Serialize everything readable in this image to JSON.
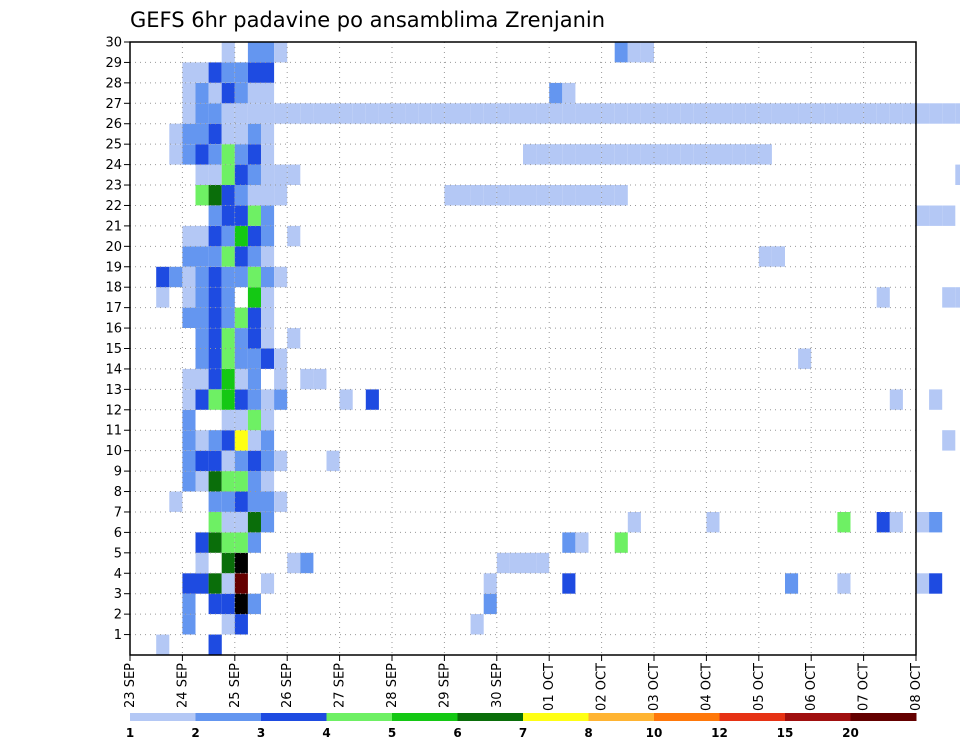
{
  "chart_data": {
    "type": "heatmap",
    "title": "GEFS 6hr padavine po ansamblima Zrenjanin",
    "y_members": [
      1,
      2,
      3,
      4,
      5,
      6,
      7,
      8,
      9,
      10,
      11,
      12,
      13,
      14,
      15,
      16,
      17,
      18,
      19,
      20,
      21,
      22,
      23,
      24,
      25,
      26,
      27,
      28,
      29,
      30
    ],
    "ylim": [
      0,
      30
    ],
    "x_labels": [
      "23 SEP",
      "24 SEP",
      "25 SEP",
      "26 SEP",
      "27 SEP",
      "28 SEP",
      "29 SEP",
      "30 SEP",
      "01 OCT",
      "02 OCT",
      "03 OCT",
      "04 OCT",
      "05 OCT",
      "06 OCT",
      "07 OCT",
      "08 OCT"
    ],
    "time_step_hours": 6,
    "grid": true,
    "legend": {
      "position": "bottom",
      "labels": [
        "1",
        "2",
        "3",
        "4",
        "5",
        "6",
        "7",
        "8",
        "10",
        "12",
        "15",
        "20"
      ],
      "colors": [
        "#b4c8f5",
        "#6496f0",
        "#1e4be1",
        "#6ef064",
        "#14c814",
        "#0a6e0a",
        "#ffff14",
        "#ffb432",
        "#ff780a",
        "#e63214",
        "#a00f0f",
        "#640000"
      ]
    },
    "cells": [
      [
        0.5,
        1,
        1
      ],
      [
        1.5,
        1,
        2
      ],
      [
        1.5,
        1,
        3
      ],
      [
        1,
        2,
        2
      ],
      [
        1.75,
        2,
        1
      ],
      [
        2,
        2,
        1
      ],
      [
        2,
        2,
        3
      ],
      [
        6.5,
        2,
        1
      ],
      [
        1,
        3,
        2
      ],
      [
        1.5,
        3,
        3
      ],
      [
        1.75,
        3,
        3
      ],
      [
        2,
        3,
        14
      ],
      [
        2.25,
        3,
        2
      ],
      [
        6.75,
        3,
        2
      ],
      [
        1,
        4,
        3
      ],
      [
        1.25,
        4,
        3
      ],
      [
        1.5,
        4,
        6
      ],
      [
        1.75,
        4,
        1
      ],
      [
        2,
        4,
        12
      ],
      [
        2.5,
        4,
        1
      ],
      [
        6.75,
        4,
        1
      ],
      [
        8.25,
        4,
        3
      ],
      [
        12.5,
        4,
        2
      ],
      [
        13.5,
        4,
        1
      ],
      [
        15,
        4,
        1
      ],
      [
        15.25,
        4,
        3
      ],
      [
        1.25,
        5,
        1
      ],
      [
        1.75,
        5,
        6
      ],
      [
        2,
        5,
        13
      ],
      [
        3,
        5,
        1
      ],
      [
        3.25,
        5,
        2
      ],
      [
        7,
        5,
        1
      ],
      [
        7.25,
        5,
        1
      ],
      [
        7.5,
        5,
        1
      ],
      [
        7.75,
        5,
        1
      ],
      [
        1.25,
        6,
        3
      ],
      [
        1.5,
        6,
        6
      ],
      [
        1.75,
        6,
        4
      ],
      [
        2,
        6,
        4
      ],
      [
        2.25,
        6,
        2
      ],
      [
        8.25,
        6,
        2
      ],
      [
        8.5,
        6,
        1
      ],
      [
        9.25,
        6,
        4
      ],
      [
        1.5,
        7,
        4
      ],
      [
        1.75,
        7,
        1
      ],
      [
        2,
        7,
        1
      ],
      [
        2.25,
        7,
        6
      ],
      [
        2.5,
        7,
        2
      ],
      [
        9.5,
        7,
        1
      ],
      [
        11,
        7,
        1
      ],
      [
        13.5,
        7,
        4
      ],
      [
        14.25,
        7,
        3
      ],
      [
        14.5,
        7,
        1
      ],
      [
        15,
        7,
        1
      ],
      [
        15.25,
        7,
        2
      ],
      [
        0.75,
        8,
        1
      ],
      [
        1.5,
        8,
        2
      ],
      [
        1.75,
        8,
        2
      ],
      [
        2,
        8,
        3
      ],
      [
        2.25,
        8,
        2
      ],
      [
        2.5,
        8,
        2
      ],
      [
        2.75,
        8,
        1
      ],
      [
        1,
        9,
        2
      ],
      [
        1.25,
        9,
        1
      ],
      [
        1.5,
        9,
        6
      ],
      [
        1.75,
        9,
        4
      ],
      [
        2,
        9,
        4
      ],
      [
        2.25,
        9,
        2
      ],
      [
        2.5,
        9,
        1
      ],
      [
        1,
        10,
        2
      ],
      [
        1.25,
        10,
        3
      ],
      [
        1.5,
        10,
        3
      ],
      [
        1.75,
        10,
        1
      ],
      [
        2,
        10,
        2
      ],
      [
        2.25,
        10,
        3
      ],
      [
        2.5,
        10,
        2
      ],
      [
        2.75,
        10,
        1
      ],
      [
        3.75,
        10,
        1
      ],
      [
        1,
        11,
        2
      ],
      [
        1.25,
        11,
        1
      ],
      [
        1.5,
        11,
        2
      ],
      [
        1.75,
        11,
        3
      ],
      [
        2,
        11,
        7
      ],
      [
        2.25,
        11,
        1
      ],
      [
        2.5,
        11,
        2
      ],
      [
        15.5,
        11,
        1
      ],
      [
        1,
        12,
        2
      ],
      [
        1.75,
        12,
        1
      ],
      [
        2,
        12,
        1
      ],
      [
        2.25,
        12,
        4
      ],
      [
        2.5,
        12,
        1
      ],
      [
        1,
        13,
        1
      ],
      [
        1.25,
        13,
        3
      ],
      [
        1.5,
        13,
        4
      ],
      [
        1.75,
        13,
        5
      ],
      [
        2,
        13,
        3
      ],
      [
        2.25,
        13,
        2
      ],
      [
        2.5,
        13,
        1
      ],
      [
        2.75,
        13,
        2
      ],
      [
        4,
        13,
        1
      ],
      [
        4.5,
        13,
        3
      ],
      [
        14.5,
        13,
        1
      ],
      [
        15.25,
        13,
        1
      ],
      [
        1,
        14,
        1
      ],
      [
        1.25,
        14,
        1
      ],
      [
        1.5,
        14,
        3
      ],
      [
        1.75,
        14,
        5
      ],
      [
        2,
        14,
        1
      ],
      [
        2.25,
        14,
        2
      ],
      [
        2.75,
        14,
        1
      ],
      [
        3.25,
        14,
        1
      ],
      [
        3.5,
        14,
        1
      ],
      [
        1.25,
        15,
        2
      ],
      [
        1.5,
        15,
        3
      ],
      [
        1.75,
        15,
        4
      ],
      [
        2,
        15,
        2
      ],
      [
        2.25,
        15,
        2
      ],
      [
        2.5,
        15,
        3
      ],
      [
        2.75,
        15,
        1
      ],
      [
        12.75,
        15,
        1
      ],
      [
        1.25,
        16,
        2
      ],
      [
        1.5,
        16,
        3
      ],
      [
        1.75,
        16,
        4
      ],
      [
        2,
        16,
        2
      ],
      [
        2.25,
        16,
        3
      ],
      [
        2.5,
        16,
        1
      ],
      [
        3,
        16,
        1
      ],
      [
        1,
        17,
        2
      ],
      [
        1.25,
        17,
        2
      ],
      [
        1.5,
        17,
        3
      ],
      [
        1.75,
        17,
        2
      ],
      [
        2,
        17,
        4
      ],
      [
        2.25,
        17,
        3
      ],
      [
        2.5,
        17,
        1
      ],
      [
        0.5,
        18,
        1
      ],
      [
        1,
        18,
        1
      ],
      [
        1.25,
        18,
        2
      ],
      [
        1.5,
        18,
        3
      ],
      [
        1.75,
        18,
        2
      ],
      [
        2.25,
        18,
        5
      ],
      [
        2.5,
        18,
        1
      ],
      [
        14.25,
        18,
        1
      ],
      [
        15.5,
        18,
        1
      ],
      [
        15.75,
        18,
        1
      ],
      [
        0.5,
        19,
        3
      ],
      [
        0.75,
        19,
        2
      ],
      [
        1,
        19,
        1
      ],
      [
        1.25,
        19,
        2
      ],
      [
        1.5,
        19,
        3
      ],
      [
        1.75,
        19,
        2
      ],
      [
        2,
        19,
        2
      ],
      [
        2.25,
        19,
        4
      ],
      [
        2.5,
        19,
        2
      ],
      [
        2.75,
        19,
        1
      ],
      [
        1,
        20,
        2
      ],
      [
        1.25,
        20,
        2
      ],
      [
        1.5,
        20,
        2
      ],
      [
        1.75,
        20,
        4
      ],
      [
        2,
        20,
        3
      ],
      [
        2.25,
        20,
        2
      ],
      [
        2.5,
        20,
        1
      ],
      [
        12,
        20,
        1
      ],
      [
        12.25,
        20,
        1
      ],
      [
        1,
        21,
        1
      ],
      [
        1.25,
        21,
        1
      ],
      [
        1.5,
        21,
        3
      ],
      [
        1.75,
        21,
        2
      ],
      [
        2,
        21,
        5
      ],
      [
        2.25,
        21,
        3
      ],
      [
        2.5,
        21,
        2
      ],
      [
        3,
        21,
        1
      ],
      [
        1.5,
        22,
        2
      ],
      [
        1.75,
        22,
        3
      ],
      [
        2,
        22,
        3
      ],
      [
        2.25,
        22,
        4
      ],
      [
        2.5,
        22,
        2
      ],
      [
        15,
        22,
        1
      ],
      [
        15.25,
        22,
        1
      ],
      [
        15.5,
        22,
        1
      ],
      [
        1.25,
        23,
        4
      ],
      [
        1.5,
        23,
        6
      ],
      [
        1.75,
        23,
        3
      ],
      [
        2,
        23,
        2
      ],
      [
        2.25,
        23,
        1
      ],
      [
        2.5,
        23,
        1
      ],
      [
        2.75,
        23,
        1
      ],
      [
        6,
        23,
        1
      ],
      [
        6.25,
        23,
        1
      ],
      [
        6.5,
        23,
        1
      ],
      [
        6.75,
        23,
        1
      ],
      [
        7,
        23,
        1
      ],
      [
        7.25,
        23,
        1
      ],
      [
        7.5,
        23,
        1
      ],
      [
        7.75,
        23,
        1
      ],
      [
        8,
        23,
        1
      ],
      [
        8.25,
        23,
        1
      ],
      [
        8.5,
        23,
        1
      ],
      [
        8.75,
        23,
        1
      ],
      [
        9,
        23,
        1
      ],
      [
        9.25,
        23,
        1
      ],
      [
        1.25,
        24,
        1
      ],
      [
        1.5,
        24,
        1
      ],
      [
        1.75,
        24,
        4
      ],
      [
        2,
        24,
        3
      ],
      [
        2.25,
        24,
        2
      ],
      [
        2.5,
        24,
        1
      ],
      [
        2.75,
        24,
        1
      ],
      [
        3,
        24,
        1
      ],
      [
        15.75,
        24,
        1
      ],
      [
        0.75,
        25,
        1
      ],
      [
        1,
        25,
        2
      ],
      [
        1.25,
        25,
        3
      ],
      [
        1.5,
        25,
        2
      ],
      [
        1.75,
        25,
        4
      ],
      [
        2,
        25,
        2
      ],
      [
        2.25,
        25,
        3
      ],
      [
        2.5,
        25,
        1
      ],
      [
        7.5,
        25,
        1
      ],
      [
        7.75,
        25,
        1
      ],
      [
        8,
        25,
        1
      ],
      [
        8.25,
        25,
        1
      ],
      [
        8.5,
        25,
        1
      ],
      [
        8.75,
        25,
        1
      ],
      [
        9,
        25,
        1
      ],
      [
        9.25,
        25,
        1
      ],
      [
        9.5,
        25,
        1
      ],
      [
        9.75,
        25,
        1
      ],
      [
        10,
        25,
        1
      ],
      [
        10.25,
        25,
        1
      ],
      [
        10.5,
        25,
        1
      ],
      [
        10.75,
        25,
        1
      ],
      [
        11,
        25,
        1
      ],
      [
        11.25,
        25,
        1
      ],
      [
        11.5,
        25,
        1
      ],
      [
        11.75,
        25,
        1
      ],
      [
        12,
        25,
        1
      ],
      [
        0.75,
        26,
        1
      ],
      [
        1,
        26,
        2
      ],
      [
        1.25,
        26,
        2
      ],
      [
        1.5,
        26,
        3
      ],
      [
        1.75,
        26,
        1
      ],
      [
        2,
        26,
        1
      ],
      [
        2.25,
        26,
        2
      ],
      [
        2.5,
        26,
        1
      ],
      [
        1,
        27,
        1
      ],
      [
        1.25,
        27,
        2
      ],
      [
        1.5,
        27,
        2
      ],
      [
        1.75,
        27,
        1
      ],
      [
        2,
        27,
        1
      ],
      [
        2.25,
        27,
        1
      ],
      [
        2.5,
        27,
        1
      ],
      [
        2.75,
        27,
        1
      ],
      [
        3,
        27,
        1
      ],
      [
        3.25,
        27,
        1
      ],
      [
        3.5,
        27,
        1
      ],
      [
        3.75,
        27,
        1
      ],
      [
        4,
        27,
        1
      ],
      [
        4.25,
        27,
        1
      ],
      [
        4.5,
        27,
        1
      ],
      [
        4.75,
        27,
        1
      ],
      [
        5,
        27,
        1
      ],
      [
        5.25,
        27,
        1
      ],
      [
        5.5,
        27,
        1
      ],
      [
        5.75,
        27,
        1
      ],
      [
        6,
        27,
        1
      ],
      [
        6.25,
        27,
        1
      ],
      [
        6.5,
        27,
        1
      ],
      [
        6.75,
        27,
        1
      ],
      [
        7,
        27,
        1
      ],
      [
        7.25,
        27,
        1
      ],
      [
        7.5,
        27,
        1
      ],
      [
        7.75,
        27,
        1
      ],
      [
        8,
        27,
        1
      ],
      [
        8.25,
        27,
        1
      ],
      [
        8.5,
        27,
        1
      ],
      [
        8.75,
        27,
        1
      ],
      [
        9,
        27,
        1
      ],
      [
        9.25,
        27,
        1
      ],
      [
        9.5,
        27,
        1
      ],
      [
        9.75,
        27,
        1
      ],
      [
        10,
        27,
        1
      ],
      [
        10.25,
        27,
        1
      ],
      [
        10.5,
        27,
        1
      ],
      [
        10.75,
        27,
        1
      ],
      [
        11,
        27,
        1
      ],
      [
        11.25,
        27,
        1
      ],
      [
        11.5,
        27,
        1
      ],
      [
        11.75,
        27,
        1
      ],
      [
        12,
        27,
        1
      ],
      [
        12.25,
        27,
        1
      ],
      [
        12.5,
        27,
        1
      ],
      [
        12.75,
        27,
        1
      ],
      [
        13,
        27,
        1
      ],
      [
        13.25,
        27,
        1
      ],
      [
        13.5,
        27,
        1
      ],
      [
        13.75,
        27,
        1
      ],
      [
        14,
        27,
        1
      ],
      [
        14.25,
        27,
        1
      ],
      [
        14.5,
        27,
        1
      ],
      [
        14.75,
        27,
        1
      ],
      [
        15,
        27,
        1
      ],
      [
        15.25,
        27,
        1
      ],
      [
        15.5,
        27,
        1
      ],
      [
        15.75,
        27,
        1
      ],
      [
        1,
        28,
        1
      ],
      [
        1.25,
        28,
        2
      ],
      [
        1.5,
        28,
        1
      ],
      [
        1.75,
        28,
        3
      ],
      [
        2,
        28,
        2
      ],
      [
        2.25,
        28,
        1
      ],
      [
        2.5,
        28,
        1
      ],
      [
        8,
        28,
        2
      ],
      [
        8.25,
        28,
        1
      ],
      [
        1,
        29,
        1
      ],
      [
        1.25,
        29,
        1
      ],
      [
        1.5,
        29,
        3
      ],
      [
        1.75,
        29,
        2
      ],
      [
        2,
        29,
        2
      ],
      [
        2.25,
        29,
        3
      ],
      [
        2.5,
        29,
        3
      ],
      [
        1.75,
        30,
        1
      ],
      [
        2.25,
        30,
        2
      ],
      [
        2.5,
        30,
        2
      ],
      [
        2.75,
        30,
        1
      ],
      [
        9.25,
        30,
        2
      ],
      [
        9.5,
        30,
        1
      ],
      [
        9.75,
        30,
        1
      ]
    ]
  }
}
